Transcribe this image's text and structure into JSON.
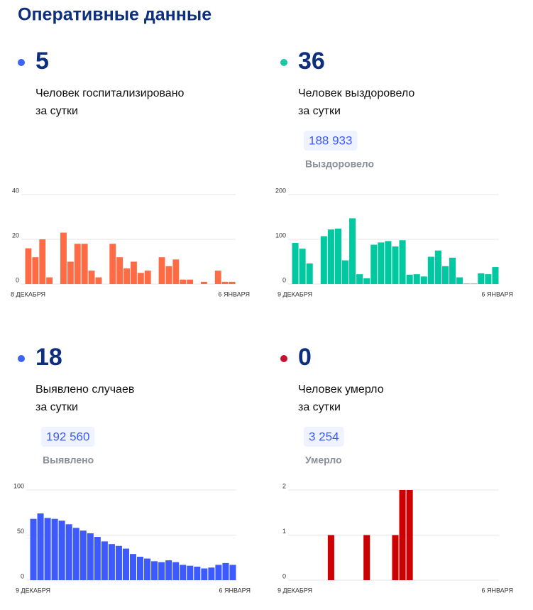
{
  "title": "Оперативные данные",
  "cards": [
    {
      "value": 5,
      "dot_color": "#3d63f5",
      "caption": [
        "Человек госпитализировано",
        "за сутки"
      ]
    },
    {
      "value": 36,
      "dot_color": "#1cc7a3",
      "caption": [
        "Человек выздоровело",
        "за сутки"
      ],
      "total": "188 933",
      "total_label": "Выздоровело"
    },
    {
      "value": 18,
      "dot_color": "#3d63f5",
      "caption": [
        "Выявлено случаев",
        "за сутки"
      ],
      "total": "192 560",
      "total_label": "Выявлено"
    },
    {
      "value": 0,
      "dot_color": "#c8102e",
      "caption": [
        "Человек умерло",
        "за сутки"
      ],
      "total": "3 254",
      "total_label": "Умерло"
    }
  ],
  "chart_data": [
    {
      "type": "bar",
      "color": "#ff6b45",
      "ylim": [
        0,
        40
      ],
      "yticks": [
        0,
        20,
        40
      ],
      "grid": true,
      "categories": [
        "8 ДЕКАБРЯ",
        null,
        null,
        null,
        null,
        null,
        null,
        null,
        null,
        null,
        null,
        null,
        null,
        null,
        null,
        null,
        null,
        null,
        null,
        null,
        null,
        null,
        null,
        null,
        null,
        null,
        null,
        null,
        null,
        "6 ЯНВАРЯ"
      ],
      "values": [
        16,
        12,
        20,
        3,
        0,
        23,
        10,
        18,
        18,
        6,
        3,
        0,
        18,
        12,
        7,
        10,
        5,
        6,
        0,
        12,
        8,
        11,
        2,
        2,
        0,
        1,
        0,
        6,
        1,
        1
      ]
    },
    {
      "type": "bar",
      "color": "#00c8a0",
      "ylim": [
        0,
        200
      ],
      "yticks": [
        0,
        100,
        200
      ],
      "grid": true,
      "categories": [
        "9 ДЕКАБРЯ",
        null,
        null,
        null,
        null,
        null,
        null,
        null,
        null,
        null,
        null,
        null,
        null,
        null,
        null,
        null,
        null,
        null,
        null,
        null,
        null,
        null,
        null,
        null,
        null,
        null,
        null,
        null,
        "6 ЯНВАРЯ"
      ],
      "values": [
        92,
        79,
        46,
        0,
        107,
        122,
        124,
        53,
        147,
        22,
        13,
        88,
        93,
        96,
        84,
        98,
        21,
        22,
        17,
        61,
        75,
        40,
        59,
        15,
        1,
        1,
        24,
        22,
        38
      ]
    },
    {
      "type": "bar",
      "color": "#3d5afe",
      "ylim": [
        0,
        100
      ],
      "yticks": [
        0,
        50,
        100
      ],
      "grid": true,
      "categories": [
        "9 ДЕКАБРЯ",
        null,
        null,
        null,
        null,
        null,
        null,
        null,
        null,
        null,
        null,
        null,
        null,
        null,
        null,
        null,
        null,
        null,
        null,
        null,
        null,
        null,
        null,
        null,
        null,
        null,
        null,
        null,
        "6 ЯНВАРЯ"
      ],
      "values": [
        68,
        74,
        69,
        68,
        66,
        62,
        58,
        55,
        52,
        48,
        43,
        40,
        38,
        35,
        29,
        26,
        24,
        21,
        20,
        22,
        20,
        17,
        16,
        15,
        13,
        14,
        17,
        19,
        17
      ]
    },
    {
      "type": "bar",
      "color": "#cc0000",
      "ylim": [
        0,
        2
      ],
      "yticks": [
        0,
        1,
        2
      ],
      "grid": true,
      "categories": [
        "9 ДЕКАБРЯ",
        null,
        null,
        null,
        null,
        null,
        null,
        null,
        null,
        null,
        null,
        null,
        null,
        null,
        null,
        null,
        null,
        null,
        null,
        null,
        null,
        null,
        null,
        null,
        null,
        null,
        null,
        null,
        "6 ЯНВАРЯ"
      ],
      "values": [
        0,
        0,
        0,
        0,
        0,
        1,
        0,
        0,
        0,
        0,
        1,
        0,
        0,
        0,
        1,
        2,
        2,
        0,
        0,
        0,
        0,
        0,
        0,
        0,
        0,
        0,
        0,
        0,
        0
      ]
    }
  ]
}
